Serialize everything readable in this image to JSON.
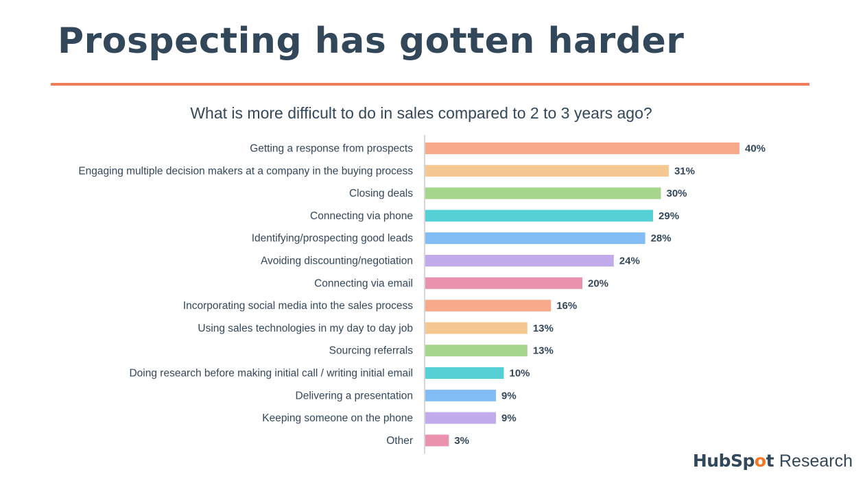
{
  "slide": {
    "title": "Prospecting has gotten harder",
    "subtitle": "What is more difficult to do in sales compared to 2 to 3 years ago?"
  },
  "logo": {
    "brand_part1": "HubSp",
    "brand_o": "o",
    "brand_part2": "t",
    "suffix": "Research"
  },
  "colors": {
    "title": "#33475b",
    "rule": "#f07c5b",
    "text": "#33475b",
    "axis": "#c8c8c8",
    "logo_accent": "#f57722"
  },
  "chart_data": {
    "type": "bar",
    "orientation": "horizontal",
    "title": "What is more difficult to do in sales compared to 2 to 3 years ago?",
    "categories": [
      "Getting a response from prospects",
      "Engaging multiple decision makers at a company in the buying process",
      "Closing deals",
      "Connecting via phone",
      "Identifying/prospecting good leads",
      "Avoiding discounting/negotiation",
      "Connecting via email",
      "Incorporating social media into the sales process",
      "Using sales technologies in my day to day job",
      "Sourcing referrals",
      "Doing research before making initial call / writing initial email",
      "Delivering a presentation",
      "Keeping someone on the phone",
      "Other"
    ],
    "values": [
      40,
      31,
      30,
      29,
      28,
      24,
      20,
      16,
      13,
      13,
      10,
      9,
      9,
      3
    ],
    "labels": [
      "40%",
      "31%",
      "30%",
      "29%",
      "28%",
      "24%",
      "20%",
      "16%",
      "13%",
      "13%",
      "10%",
      "9%",
      "9%",
      "3%"
    ],
    "unit": "%",
    "bar_colors": [
      "#f8a98c",
      "#f5c891",
      "#a6d58d",
      "#55d1d6",
      "#81bdf4",
      "#c1abea",
      "#ea92ad",
      "#f8a98c",
      "#f5c891",
      "#a6d58d",
      "#55d1d6",
      "#81bdf4",
      "#c1abea",
      "#ea92ad"
    ],
    "xlim": [
      0,
      40
    ],
    "grid": false,
    "legend": "none"
  }
}
